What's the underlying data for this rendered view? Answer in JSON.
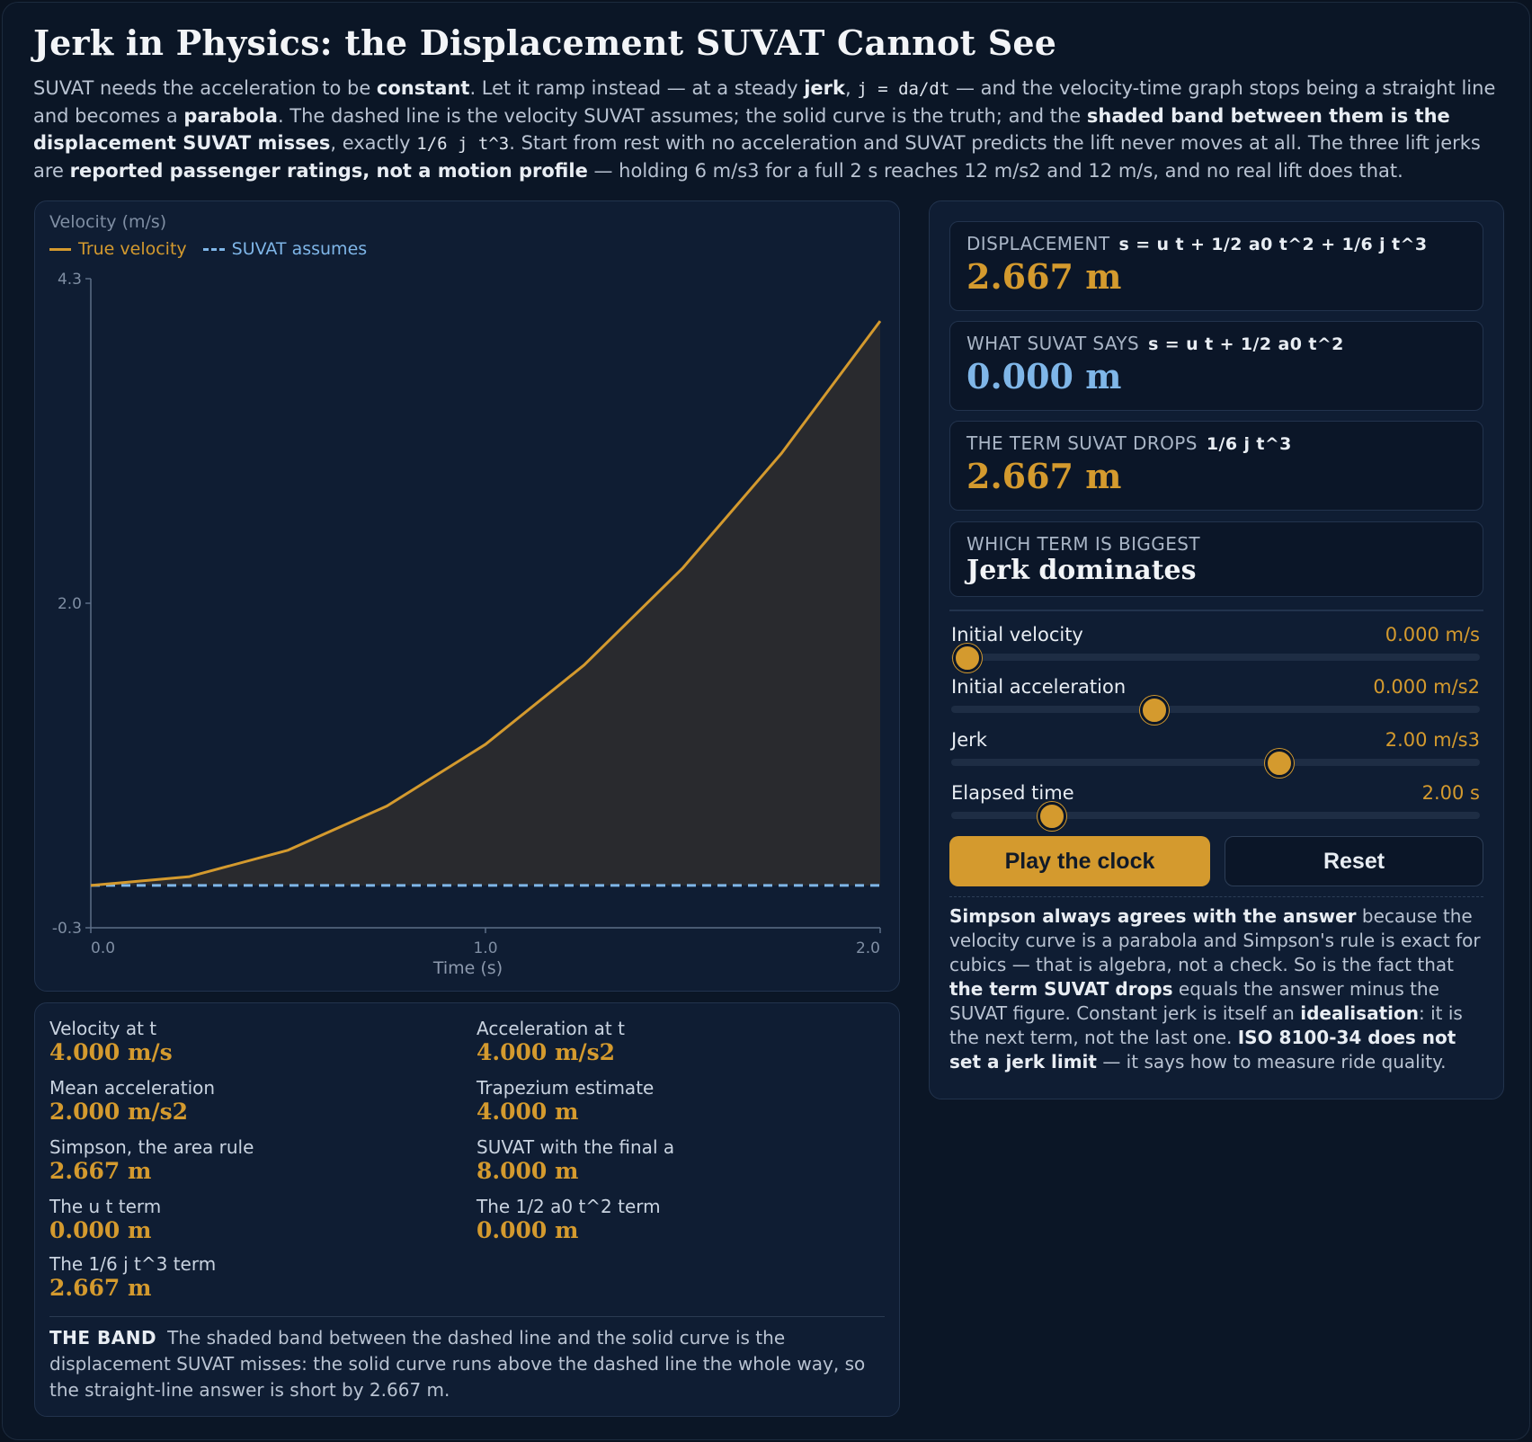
{
  "header": {
    "title": "Jerk in Physics: the Displacement SUVAT Cannot See"
  },
  "intro": {
    "p1": "SUVAT needs the acceleration to be ",
    "b1": "constant",
    "p2": ". Let it ramp instead — at a steady ",
    "b2": "jerk",
    "p3": ", ",
    "c1": "j = da/dt",
    "p4": " — and the velocity-time graph stops being a straight line and becomes a ",
    "b3": "parabola",
    "p5": ". The dashed line is the velocity SUVAT assumes; the solid curve is the truth; and the ",
    "b4": "shaded band between them is the displacement SUVAT misses",
    "p6": ", exactly ",
    "c2": "1/6 j t^3",
    "p7": ". Start from rest with no acceleration and SUVAT predicts the lift never moves at all. The three lift jerks are ",
    "b5": "reported passenger ratings, not a motion profile",
    "p8": " — holding 6 m/s3 for a full 2 s reaches 12 m/s2 and 12 m/s, and no real lift does that."
  },
  "chart": {
    "y_axis_title": "Velocity (m/s)",
    "x_axis_title": "Time (s)",
    "legend_true": "True velocity",
    "legend_suvat": "SUVAT assumes",
    "y_tick_labels": [
      "4.3",
      "2.0",
      "-0.3"
    ],
    "x_tick_labels": [
      "0.0",
      "1.0",
      "2.0"
    ]
  },
  "chart_data": {
    "type": "area",
    "xlabel": "Time (s)",
    "ylabel": "Velocity (m/s)",
    "xlim": [
      0,
      2
    ],
    "ylim": [
      -0.3,
      4.3
    ],
    "yticks": [
      4.3,
      2.0,
      -0.3
    ],
    "xticks": [
      0.0,
      1.0,
      2.0
    ],
    "grid": false,
    "legend_position": "top-left",
    "series": [
      {
        "name": "True velocity",
        "style": "solid",
        "color": "#d49a2e",
        "x": [
          0.0,
          0.25,
          0.5,
          0.75,
          1.0,
          1.25,
          1.5,
          1.75,
          2.0
        ],
        "y": [
          0.0,
          0.0625,
          0.25,
          0.5625,
          1.0,
          1.5625,
          2.25,
          3.0625,
          4.0
        ]
      },
      {
        "name": "SUVAT assumes",
        "style": "dashed",
        "color": "#7fb6e8",
        "x": [
          0.0,
          2.0
        ],
        "y": [
          0.0,
          0.0
        ]
      }
    ],
    "band": {
      "between": [
        "SUVAT assumes",
        "True velocity"
      ],
      "color": "#2b2b2e"
    }
  },
  "stats": {
    "velocity_label": "Velocity at t",
    "velocity_value": "4.000 m/s",
    "accel_label": "Acceleration at t",
    "accel_value": "4.000 m/s2",
    "mean_accel_label": "Mean acceleration",
    "mean_accel_value": "2.000 m/s2",
    "trapezium_label": "Trapezium estimate",
    "trapezium_value": "4.000 m",
    "simpson_label": "Simpson, the area rule",
    "simpson_value": "2.667 m",
    "suvat_final_label": "SUVAT with the final a",
    "suvat_final_value": "8.000 m",
    "ut_label": "The u t term",
    "ut_value": "0.000 m",
    "half_at2_label": "The 1/2 a0 t^2 term",
    "half_at2_value": "0.000 m",
    "jt3_label": "The 1/6 j t^3 term",
    "jt3_value": "2.667 m",
    "band_tag": "THE BAND",
    "band_text": "The shaded band between the dashed line and the solid curve is the displacement SUVAT misses: the solid curve runs above the dashed line the whole way, so the straight-line answer is short by 2.667 m."
  },
  "cards": {
    "displacement": {
      "head": "DISPLACEMENT",
      "formula": "s = u t + 1/2 a0 t^2 + 1/6 j t^3",
      "value": "2.667 m"
    },
    "suvat_says": {
      "head": "WHAT SUVAT SAYS",
      "formula": "s = u t + 1/2 a0 t^2",
      "value": "0.000 m"
    },
    "term_drops": {
      "head": "THE TERM SUVAT DROPS",
      "formula": "1/6 j t^3",
      "value": "2.667 m"
    },
    "biggest": {
      "head": "WHICH TERM IS BIGGEST",
      "value": "Jerk dominates"
    }
  },
  "sliders": [
    {
      "label": "Initial velocity",
      "value": "0.000 m/s",
      "fraction": 0.03
    },
    {
      "label": "Initial acceleration",
      "value": "0.000 m/s2",
      "fraction": 0.385
    },
    {
      "label": "Jerk",
      "value": "2.00 m/s3",
      "fraction": 0.62
    },
    {
      "label": "Elapsed time",
      "value": "2.00 s",
      "fraction": 0.19
    }
  ],
  "buttons": {
    "play": "Play the clock",
    "reset": "Reset"
  },
  "side_note": {
    "b1": "Simpson always agrees with the answer",
    "p1": " because the velocity curve is a parabola and Simpson's rule is exact for cubics — that is algebra, not a check. So is the fact that ",
    "b2": "the term SUVAT drops",
    "p2": " equals the answer minus the SUVAT figure. Constant jerk is itself an ",
    "b3": "idealisation",
    "p3": ": it is the next term, not the last one. ",
    "b4": "ISO 8100-34 does not set a jerk limit",
    "p4": " — it says how to measure ride quality."
  },
  "colors": {
    "accent": "#d49a2e",
    "suvat_blue": "#7fb6e8",
    "background": "#0b1626"
  }
}
